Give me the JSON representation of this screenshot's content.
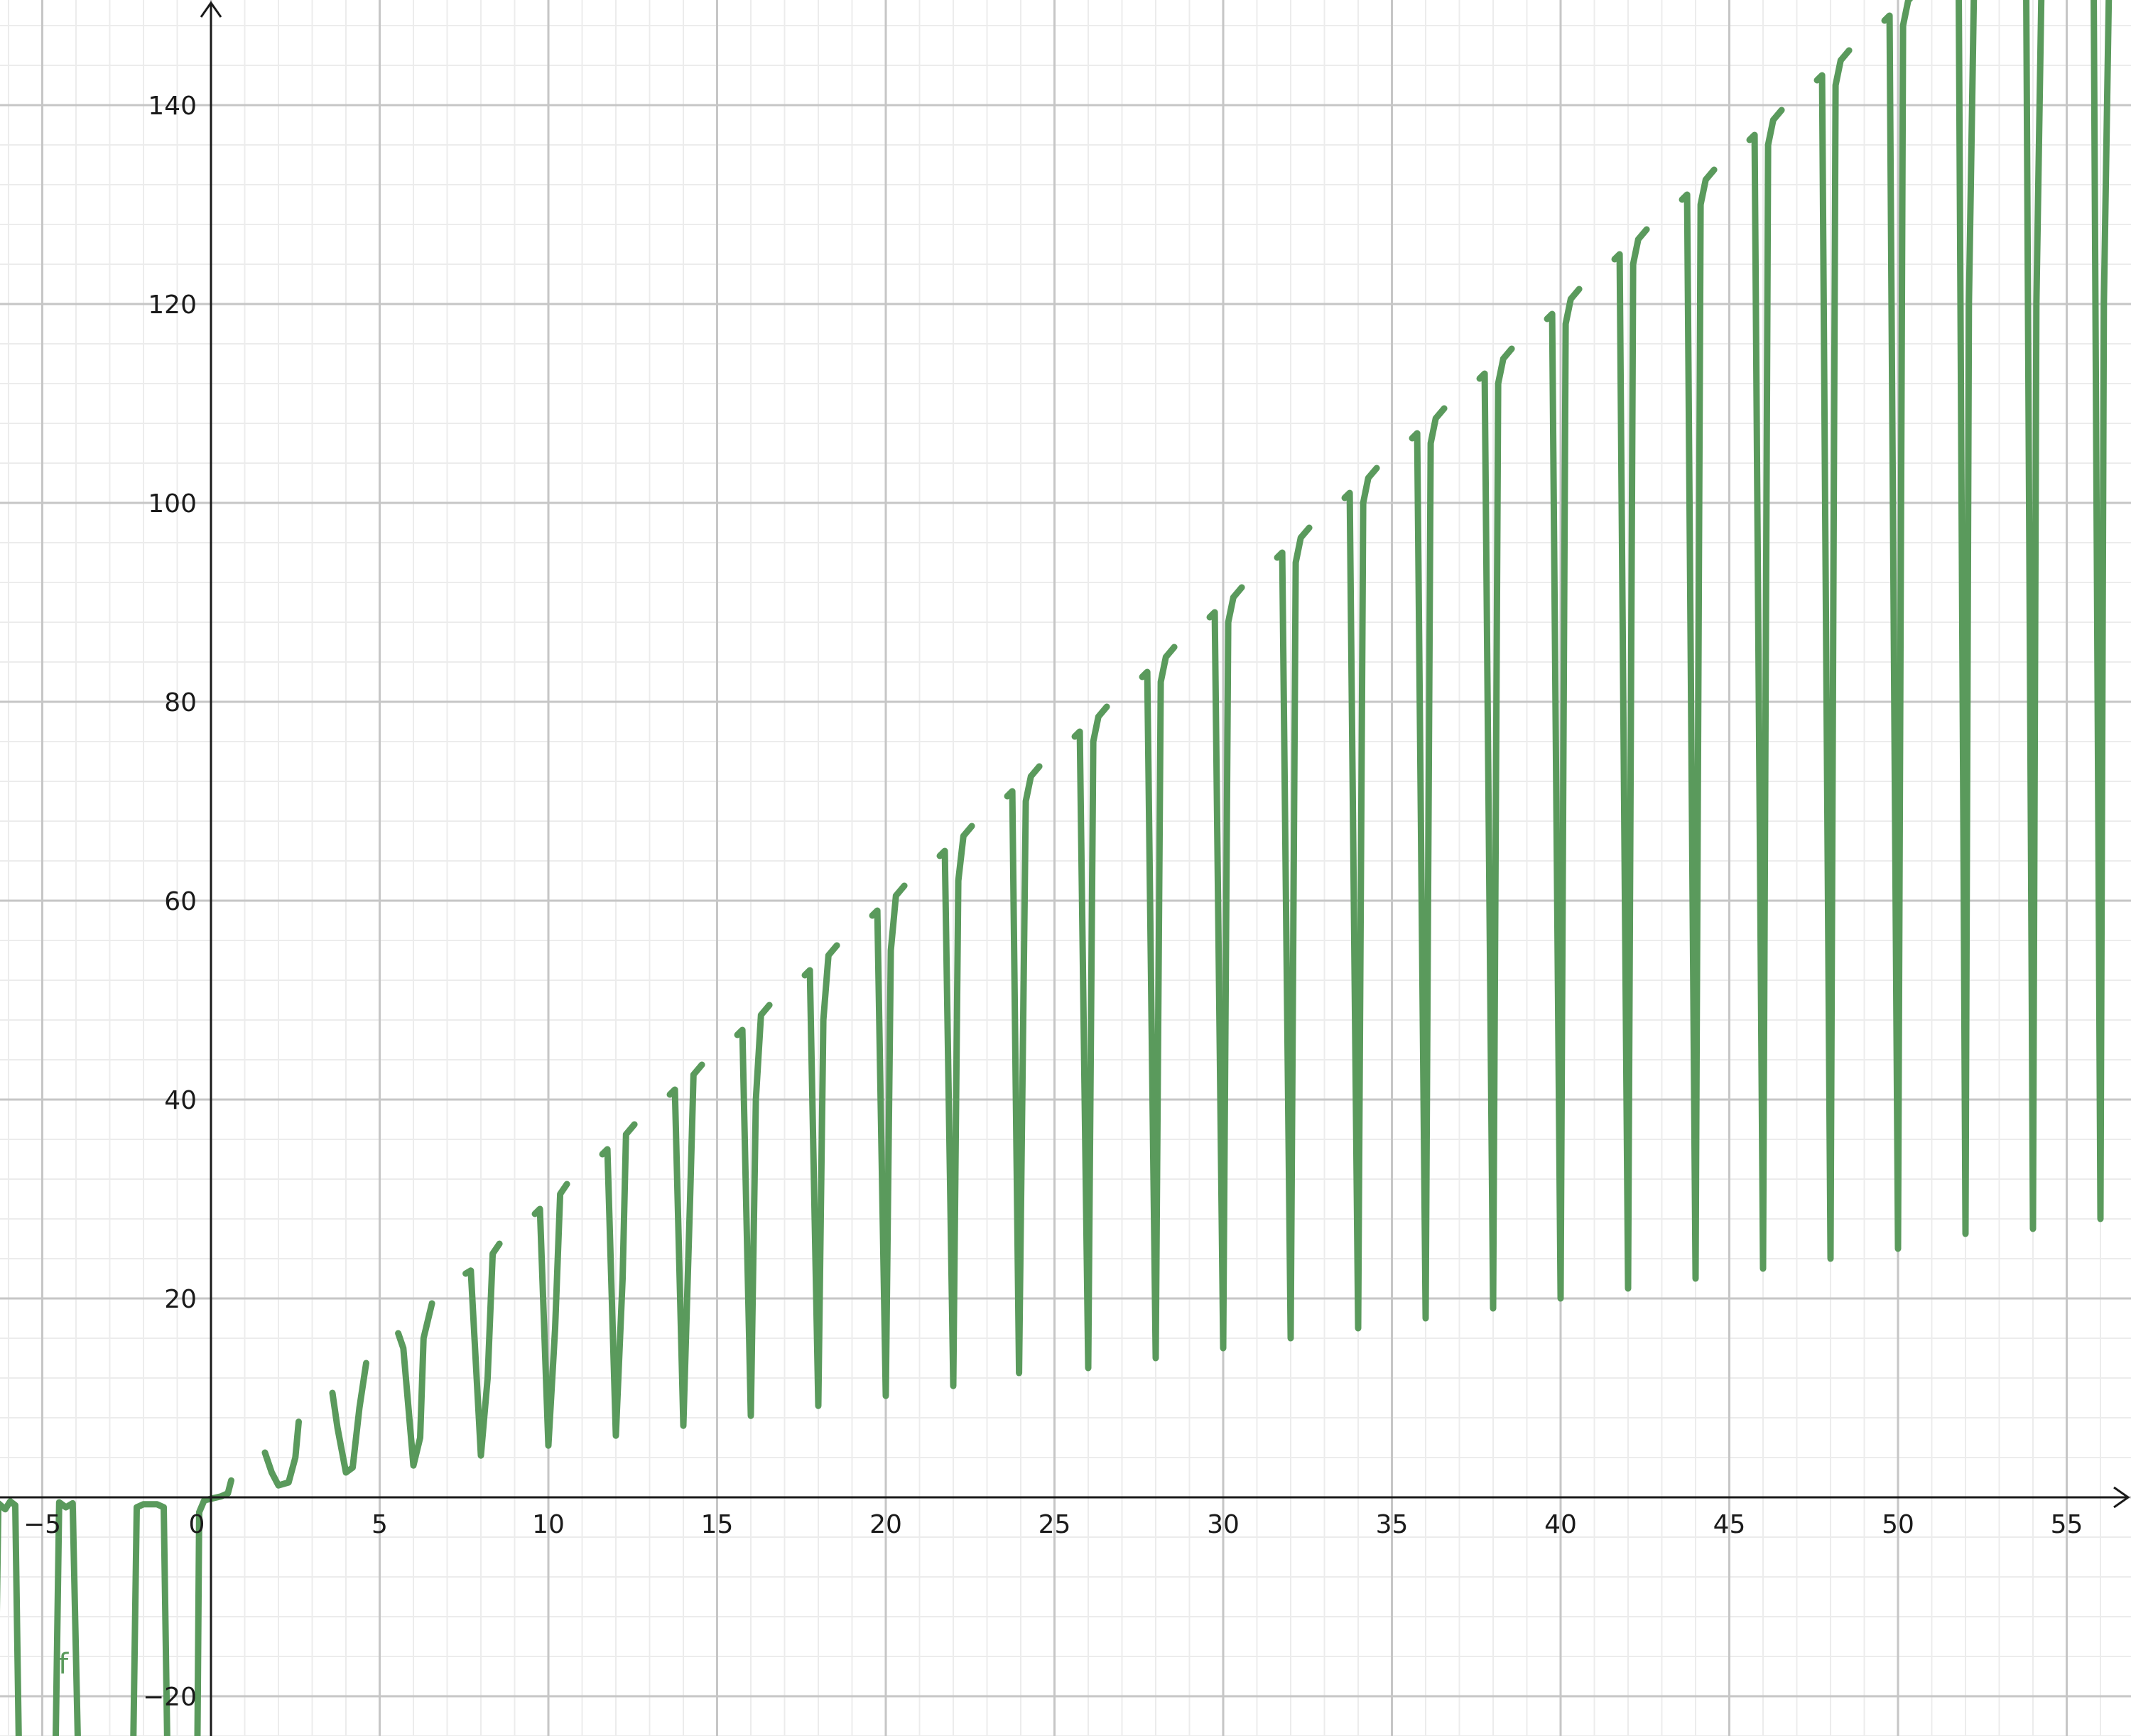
{
  "function_label": "f",
  "colors": {
    "curve": "#5a9a5c",
    "axis": "#1a1a1a",
    "grid_major": "#c6c6c6",
    "grid_minor": "#ececec"
  },
  "chart_data": {
    "type": "line",
    "title": "",
    "xlabel": "",
    "ylabel": "",
    "xlim": [
      -6.4,
      56.8
    ],
    "ylim": [
      -23.5,
      151
    ],
    "grid": true,
    "major_step_x": 5,
    "minor_step_x": 1,
    "major_step_y": 20,
    "minor_step_y": 4,
    "x_ticks": [
      -5,
      0,
      5,
      10,
      15,
      20,
      25,
      30,
      35,
      40,
      45,
      50,
      55
    ],
    "x_tick_labels": [
      "−5",
      "0",
      "5",
      "10",
      "15",
      "20",
      "25",
      "30",
      "35",
      "40",
      "45",
      "50",
      "55"
    ],
    "y_ticks": [
      -20,
      20,
      40,
      60,
      80,
      100,
      120,
      140
    ],
    "y_tick_labels": [
      "−20",
      "20",
      "40",
      "60",
      "80",
      "100",
      "120",
      "140"
    ],
    "series": [
      {
        "color": "#5a9a5c",
        "segments": [
          [
            [
              -6.4,
              -24
            ],
            [
              -6.3,
              -0.6
            ],
            [
              -6.1,
              -1.2
            ],
            [
              -5.95,
              -0.4
            ],
            [
              -5.8,
              -0.8
            ],
            [
              -5.7,
              -24
            ]
          ],
          [
            [
              -4.6,
              -24
            ],
            [
              -4.5,
              -0.5
            ],
            [
              -4.3,
              -1.0
            ],
            [
              -4.1,
              -0.6
            ],
            [
              -3.95,
              -24
            ]
          ],
          [
            [
              -2.3,
              -24
            ],
            [
              -2.2,
              -1.0
            ],
            [
              -2.0,
              -0.7
            ],
            [
              -1.6,
              -0.7
            ],
            [
              -1.4,
              -1.0
            ],
            [
              -1.3,
              -24
            ]
          ],
          [
            [
              -0.4,
              -24
            ],
            [
              -0.35,
              -1.5
            ],
            [
              -0.2,
              -0.3
            ],
            [
              0.3,
              0.1
            ],
            [
              0.5,
              0.4
            ],
            [
              0.6,
              1.7
            ]
          ],
          [
            [
              1.6,
              4.5
            ],
            [
              1.8,
              2.5
            ],
            [
              2.0,
              1.2
            ],
            [
              2.3,
              1.5
            ],
            [
              2.5,
              4.0
            ],
            [
              2.6,
              7.6
            ]
          ],
          [
            [
              3.6,
              10.5
            ],
            [
              3.75,
              7.0
            ],
            [
              4.0,
              2.5
            ],
            [
              4.2,
              3.0
            ],
            [
              4.4,
              9.0
            ],
            [
              4.6,
              13.5
            ]
          ],
          [
            [
              5.55,
              16.5
            ],
            [
              5.7,
              15.0
            ],
            [
              6.0,
              3.2
            ],
            [
              6.2,
              6.0
            ],
            [
              6.3,
              16.0
            ],
            [
              6.55,
              19.5
            ]
          ],
          [
            [
              7.55,
              22.5
            ],
            [
              7.7,
              22.8
            ],
            [
              8.0,
              4.2
            ],
            [
              8.2,
              12.0
            ],
            [
              8.35,
              24.5
            ],
            [
              8.55,
              25.5
            ]
          ],
          [
            [
              9.6,
              28.5
            ],
            [
              9.75,
              29.0
            ],
            [
              10.0,
              5.2
            ],
            [
              10.2,
              17.0
            ],
            [
              10.35,
              30.5
            ],
            [
              10.55,
              31.5
            ]
          ],
          [
            [
              11.6,
              34.5
            ],
            [
              11.75,
              35.0
            ],
            [
              12.0,
              6.2
            ],
            [
              12.2,
              22.0
            ],
            [
              12.3,
              36.5
            ],
            [
              12.55,
              37.5
            ]
          ],
          [
            [
              13.6,
              40.5
            ],
            [
              13.75,
              41.0
            ],
            [
              14.0,
              7.2
            ],
            [
              14.2,
              30.0
            ],
            [
              14.3,
              42.5
            ],
            [
              14.55,
              43.5
            ]
          ],
          [
            [
              15.6,
              46.5
            ],
            [
              15.75,
              47.0
            ],
            [
              16.0,
              8.2
            ],
            [
              16.15,
              40.0
            ],
            [
              16.3,
              48.5
            ],
            [
              16.55,
              49.5
            ]
          ],
          [
            [
              17.6,
              52.5
            ],
            [
              17.75,
              53.0
            ],
            [
              18.0,
              9.2
            ],
            [
              18.15,
              48.0
            ],
            [
              18.3,
              54.5
            ],
            [
              18.55,
              55.5
            ]
          ],
          [
            [
              19.6,
              58.5
            ],
            [
              19.75,
              59.0
            ],
            [
              20.0,
              10.2
            ],
            [
              20.15,
              55.0
            ],
            [
              20.3,
              60.5
            ],
            [
              20.55,
              61.5
            ]
          ],
          [
            [
              21.6,
              64.5
            ],
            [
              21.75,
              65.0
            ],
            [
              22.0,
              11.2
            ],
            [
              22.15,
              62.0
            ],
            [
              22.3,
              66.5
            ],
            [
              22.55,
              67.5
            ]
          ],
          [
            [
              23.6,
              70.5
            ],
            [
              23.75,
              71.0
            ],
            [
              23.95,
              12.5
            ],
            [
              24.15,
              70.0
            ],
            [
              24.3,
              72.5
            ],
            [
              24.55,
              73.5
            ]
          ],
          [
            [
              25.6,
              76.5
            ],
            [
              25.75,
              77.0
            ],
            [
              26.0,
              13.0
            ],
            [
              26.15,
              76.0
            ],
            [
              26.3,
              78.5
            ],
            [
              26.55,
              79.5
            ]
          ],
          [
            [
              27.6,
              82.5
            ],
            [
              27.75,
              83.0
            ],
            [
              28.0,
              14.0
            ],
            [
              28.15,
              82.0
            ],
            [
              28.3,
              84.5
            ],
            [
              28.55,
              85.5
            ]
          ],
          [
            [
              29.6,
              88.5
            ],
            [
              29.75,
              89.0
            ],
            [
              30.0,
              15.0
            ],
            [
              30.15,
              88.0
            ],
            [
              30.3,
              90.5
            ],
            [
              30.55,
              91.5
            ]
          ],
          [
            [
              31.6,
              94.5
            ],
            [
              31.75,
              95.0
            ],
            [
              32.0,
              16.0
            ],
            [
              32.15,
              94.0
            ],
            [
              32.3,
              96.5
            ],
            [
              32.55,
              97.5
            ]
          ],
          [
            [
              33.6,
              100.5
            ],
            [
              33.75,
              101.0
            ],
            [
              34.0,
              17.0
            ],
            [
              34.15,
              100.0
            ],
            [
              34.3,
              102.5
            ],
            [
              34.55,
              103.5
            ]
          ],
          [
            [
              35.6,
              106.5
            ],
            [
              35.75,
              107.0
            ],
            [
              36.0,
              18.0
            ],
            [
              36.15,
              106.0
            ],
            [
              36.3,
              108.5
            ],
            [
              36.55,
              109.5
            ]
          ],
          [
            [
              37.6,
              112.5
            ],
            [
              37.75,
              113.0
            ],
            [
              38.0,
              19.0
            ],
            [
              38.15,
              112.0
            ],
            [
              38.3,
              114.5
            ],
            [
              38.55,
              115.5
            ]
          ],
          [
            [
              39.6,
              118.5
            ],
            [
              39.75,
              119.0
            ],
            [
              40.0,
              20.0
            ],
            [
              40.15,
              118.0
            ],
            [
              40.3,
              120.5
            ],
            [
              40.55,
              121.5
            ]
          ],
          [
            [
              41.6,
              124.5
            ],
            [
              41.75,
              125.0
            ],
            [
              42.0,
              21.0
            ],
            [
              42.15,
              124.0
            ],
            [
              42.3,
              126.5
            ],
            [
              42.55,
              127.5
            ]
          ],
          [
            [
              43.6,
              130.5
            ],
            [
              43.75,
              131.0
            ],
            [
              44.0,
              22.0
            ],
            [
              44.15,
              130.0
            ],
            [
              44.3,
              132.5
            ],
            [
              44.55,
              133.5
            ]
          ],
          [
            [
              45.6,
              136.5
            ],
            [
              45.75,
              137.0
            ],
            [
              46.0,
              23.0
            ],
            [
              46.15,
              136.0
            ],
            [
              46.3,
              138.5
            ],
            [
              46.55,
              139.5
            ]
          ],
          [
            [
              47.6,
              142.5
            ],
            [
              47.75,
              143.0
            ],
            [
              48.0,
              24.0
            ],
            [
              48.15,
              142.0
            ],
            [
              48.3,
              144.5
            ],
            [
              48.55,
              145.5
            ]
          ],
          [
            [
              49.6,
              148.5
            ],
            [
              49.75,
              149.0
            ],
            [
              50.0,
              25.0
            ],
            [
              50.15,
              148.0
            ],
            [
              50.3,
              150.5
            ],
            [
              50.55,
              151.5
            ]
          ],
          [
            [
              51.8,
              151.5
            ],
            [
              51.95,
              60.0
            ],
            [
              52.0,
              26.5
            ],
            [
              52.1,
              120.0
            ],
            [
              52.25,
              151.5
            ]
          ],
          [
            [
              53.8,
              151.5
            ],
            [
              53.95,
              60.0
            ],
            [
              54.0,
              27.0
            ],
            [
              54.1,
              120.0
            ],
            [
              54.25,
              151.5
            ]
          ],
          [
            [
              55.8,
              151.5
            ],
            [
              55.95,
              60.0
            ],
            [
              56.0,
              28.0
            ],
            [
              56.1,
              120.0
            ],
            [
              56.25,
              151.5
            ]
          ]
        ]
      }
    ]
  }
}
